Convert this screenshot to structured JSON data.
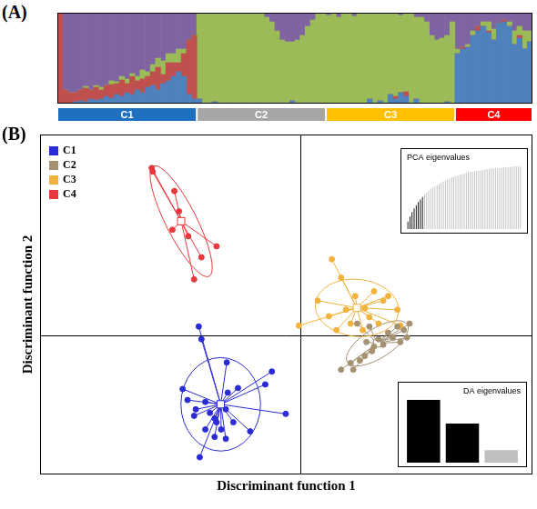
{
  "chart_data": [
    {
      "type": "bar",
      "title": "(A)",
      "stacked": true,
      "grid": false,
      "tick_labels": false,
      "categories": [
        null,
        null,
        null,
        null,
        null,
        null,
        null,
        null,
        null,
        null,
        null,
        null,
        null,
        null,
        null,
        null,
        null,
        null,
        null,
        null,
        null,
        null,
        null,
        null,
        null,
        null,
        null,
        null,
        null,
        null,
        null,
        null,
        null,
        null,
        null,
        null,
        null,
        null,
        null,
        null,
        null,
        null,
        null,
        null,
        null,
        null,
        null,
        null,
        null,
        null,
        null,
        null,
        null,
        null,
        null,
        null,
        null,
        null,
        null,
        null,
        null,
        null,
        null,
        null,
        null,
        null,
        null,
        null,
        null,
        null,
        null,
        null,
        null,
        null,
        null,
        null,
        null,
        null,
        null,
        null,
        null,
        null,
        null,
        null,
        null,
        null,
        null,
        null,
        null,
        null,
        null,
        null
      ],
      "series": [
        {
          "color": "#4f81bd",
          "values": [
            0,
            0,
            0,
            0.02,
            0.03,
            0.02,
            0.05,
            0.04,
            0.05,
            0.08,
            0.06,
            0.1,
            0.08,
            0.12,
            0.1,
            0.15,
            0.12,
            0.18,
            0.2,
            0.15,
            0.22,
            0.25,
            0.3,
            0.35,
            0.3,
            0.1,
            0.05,
            0.05,
            0,
            0,
            0.02,
            0,
            0,
            0,
            0,
            0,
            0,
            0,
            0,
            0,
            0,
            0,
            0,
            0,
            0,
            0.03,
            0,
            0,
            0,
            0,
            0,
            0,
            0,
            0,
            0,
            0,
            0,
            0,
            0,
            0,
            0.05,
            0,
            0.03,
            0,
            0.1,
            0.05,
            0.12,
            0.08,
            0,
            0.05,
            0,
            0,
            0,
            0,
            0,
            0.02,
            0,
            0.55,
            0.6,
            0.62,
            0.75,
            0.8,
            0.85,
            0.78,
            0.7,
            0.88,
            0.9,
            0.85,
            0.65,
            0.72,
            0.6,
            0.68
          ]
        },
        {
          "color": "#c0504d",
          "values": [
            1,
            0.15,
            0.12,
            0.1,
            0.12,
            0.15,
            0.1,
            0.14,
            0.1,
            0.12,
            0.15,
            0.12,
            0.18,
            0.1,
            0.2,
            0.1,
            0.15,
            0.12,
            0.15,
            0.25,
            0.1,
            0.2,
            0.15,
            0.1,
            0.25,
            0.6,
            0.7,
            0,
            0,
            0,
            0,
            0,
            0,
            0,
            0,
            0,
            0,
            0,
            0,
            0,
            0,
            0,
            0,
            0,
            0,
            0,
            0,
            0,
            0,
            0,
            0,
            0,
            0,
            0,
            0,
            0,
            0,
            0,
            0,
            0,
            0,
            0,
            0,
            0,
            0,
            0.03,
            0,
            0.05,
            0,
            0,
            0,
            0,
            0,
            0,
            0,
            0,
            0,
            0,
            0.02,
            0,
            0,
            0.05,
            0,
            0.02,
            0,
            0,
            0.02,
            0,
            0,
            0.03,
            0,
            0
          ]
        },
        {
          "color": "#9bbb59",
          "values": [
            0,
            0,
            0,
            0,
            0,
            0.02,
            0,
            0.02,
            0.03,
            0,
            0.04,
            0.02,
            0.04,
            0.05,
            0.03,
            0.05,
            0.1,
            0.05,
            0.08,
            0.1,
            0.15,
            0.1,
            0.1,
            0.15,
            0.05,
            0,
            0,
            0.95,
            1,
            1,
            0.98,
            1,
            1,
            1,
            1,
            1,
            1,
            1,
            1,
            1,
            0.95,
            0.9,
            0.8,
            0.7,
            0.68,
            0.65,
            0.7,
            0.75,
            0.85,
            0.92,
            1,
            1,
            0.97,
            1,
            0.95,
            1,
            1,
            0.96,
            1,
            1,
            0.95,
            1,
            0.97,
            1,
            0.9,
            0.92,
            0.85,
            0.87,
            1,
            0.9,
            0.95,
            0.9,
            0.75,
            0.7,
            0.72,
            0.73,
            0.9,
            0.05,
            0,
            0.03,
            0.05,
            0,
            0.05,
            0.1,
            0.12,
            0,
            0,
            0.05,
            0.15,
            0.1,
            0.2,
            0.12
          ]
        },
        {
          "color": "#8064a2",
          "values": [
            0,
            0.85,
            0.88,
            0.88,
            0.85,
            0.81,
            0.85,
            0.8,
            0.82,
            0.8,
            0.75,
            0.76,
            0.7,
            0.73,
            0.67,
            0.7,
            0.63,
            0.65,
            0.57,
            0.5,
            0.53,
            0.45,
            0.45,
            0.4,
            0.4,
            0.3,
            0.25,
            0,
            0,
            0,
            0,
            0,
            0,
            0,
            0,
            0,
            0,
            0,
            0,
            0,
            0.05,
            0.1,
            0.2,
            0.3,
            0.32,
            0.32,
            0.3,
            0.25,
            0.15,
            0.08,
            0,
            0,
            0.03,
            0,
            0.05,
            0,
            0,
            0.04,
            0,
            0,
            0,
            0,
            0,
            0,
            0,
            0,
            0.03,
            0,
            0,
            0.05,
            0.05,
            0.1,
            0.25,
            0.3,
            0.28,
            0.25,
            0.1,
            0.4,
            0.38,
            0.35,
            0.2,
            0.15,
            0.1,
            0.1,
            0.18,
            0.12,
            0.08,
            0.1,
            0.2,
            0.15,
            0.2,
            0.2
          ]
        }
      ],
      "ylim": [
        0,
        1
      ],
      "yticks": [],
      "groups": [
        {
          "label": "C1",
          "count": 27,
          "color": "#1f6fc0"
        },
        {
          "label": "C2",
          "count": 25,
          "color": "#a6a6a6"
        },
        {
          "label": "C3",
          "count": 25,
          "color": "#ffc000"
        },
        {
          "label": "C4",
          "count": 15,
          "color": "#ff0000"
        }
      ]
    },
    {
      "type": "scatter",
      "title": "(B)",
      "x_label": "Discriminant function 1",
      "y_label": "Discriminant function 2",
      "legend": "top-left",
      "grid": true,
      "tick_labels": false,
      "marker": "circle",
      "xlim": [
        -10.7,
        9.5
      ],
      "xticks": [
        0
      ],
      "ylim": [
        -5.8,
        8.4
      ],
      "yticks": [
        0
      ],
      "series": [
        {
          "name": "C1",
          "color": "#2b2bd6",
          "x": [
            -4.19,
            -4.08,
            -3.04,
            -1.19,
            -1.46,
            -2.58,
            -4.85,
            -4.65,
            -3.92,
            -4.31,
            -4.38,
            -3.73,
            -3.54,
            -3.08,
            -2.77,
            -3.27,
            -3.92,
            -3.54,
            -3.08,
            -0.62,
            -4.15,
            -2.08,
            -3.46,
            -3.0
          ],
          "y": [
            0.38,
            -0.15,
            -1.12,
            -1.5,
            -2.04,
            -2.19,
            -2.23,
            -2.69,
            -2.77,
            -3.08,
            -3.35,
            -3.23,
            -3.46,
            -3.08,
            -3.62,
            -3.92,
            -3.92,
            -4.23,
            -4.31,
            -3.27,
            -5.08,
            -4.0,
            -3.62,
            -2.38
          ]
        },
        {
          "name": "C2",
          "color": "#a39172",
          "x": [
            1.65,
            2.04,
            2.62,
            2.92,
            3.38,
            3.77,
            4.23,
            4.46,
            2.42,
            3.19,
            3.58,
            3.96,
            3.0,
            2.15,
            2.69,
            4.08,
            4.35,
            2.31,
            2.81
          ],
          "y": [
            -1.42,
            -1.15,
            -0.85,
            -0.65,
            -0.38,
            -0.08,
            0.23,
            0.5,
            -1.04,
            -0.15,
            0.12,
            0.38,
            -0.46,
            -1.42,
            -0.27,
            -0.27,
            -0.08,
            0.5,
            0.38
          ]
        },
        {
          "name": "C3",
          "color": "#f2b33d",
          "x": [
            1.27,
            1.65,
            0.69,
            -0.08,
            2.23,
            3.0,
            3.38,
            3.96,
            2.81,
            2.04,
            1.46,
            2.54,
            3.19,
            3.58,
            1.85,
            2.62,
            1.15,
            4.08
          ],
          "y": [
            3.19,
            2.42,
            1.46,
            0.42,
            1.65,
            1.85,
            1.46,
            1.08,
            0.77,
            0.5,
            0.23,
            0.23,
            0.5,
            1.65,
            1.08,
            1.15,
            0.81,
            0.42
          ]
        },
        {
          "name": "C4",
          "color": "#e8383d",
          "x": [
            -6.12,
            -6.08,
            -5.19,
            -5.0,
            -5.27,
            -4.62,
            -3.46,
            -4.08,
            -4.38
          ],
          "y": [
            7.0,
            6.85,
            6.04,
            5.19,
            4.42,
            4.15,
            3.73,
            3.27,
            2.35
          ]
        }
      ]
    },
    {
      "type": "bar",
      "title": "PCA eigenvalues",
      "grid": false,
      "tick_labels": false,
      "categories": [
        null,
        null,
        null,
        null,
        null,
        null,
        null,
        null,
        null,
        null,
        null,
        null,
        null,
        null,
        null,
        null,
        null,
        null,
        null,
        null,
        null,
        null,
        null,
        null,
        null,
        null,
        null,
        null,
        null,
        null,
        null,
        null,
        null,
        null,
        null,
        null,
        null,
        null,
        null,
        null,
        null,
        null,
        null,
        null,
        null,
        null,
        null,
        null,
        null,
        null,
        null,
        null,
        null,
        null,
        null
      ],
      "values": [
        0.12,
        0.2,
        0.27,
        0.33,
        0.38,
        0.43,
        0.47,
        0.51,
        0.55,
        0.58,
        0.61,
        0.64,
        0.66,
        0.68,
        0.7,
        0.72,
        0.74,
        0.76,
        0.77,
        0.79,
        0.8,
        0.82,
        0.83,
        0.84,
        0.85,
        0.86,
        0.87,
        0.88,
        0.89,
        0.9,
        0.905,
        0.91,
        0.92,
        0.925,
        0.93,
        0.935,
        0.94,
        0.945,
        0.95,
        0.955,
        0.96,
        0.963,
        0.966,
        0.97,
        0.973,
        0.976,
        0.979,
        0.982,
        0.985,
        0.988,
        0.99,
        0.993,
        0.995,
        0.998,
        1.0
      ],
      "colors": [
        "#000000",
        "#000000",
        "#000000",
        "#000000",
        "#000000",
        "#000000",
        "#000000",
        "#000000",
        "#bfbfbf",
        "#bfbfbf",
        "#bfbfbf",
        "#bfbfbf",
        "#bfbfbf",
        "#bfbfbf",
        "#bfbfbf",
        "#bfbfbf",
        "#bfbfbf",
        "#bfbfbf",
        "#bfbfbf",
        "#bfbfbf",
        "#bfbfbf",
        "#bfbfbf",
        "#bfbfbf",
        "#bfbfbf",
        "#bfbfbf",
        "#bfbfbf",
        "#bfbfbf",
        "#bfbfbf",
        "#bfbfbf",
        "#bfbfbf",
        "#bfbfbf",
        "#bfbfbf",
        "#bfbfbf",
        "#bfbfbf",
        "#bfbfbf",
        "#bfbfbf",
        "#bfbfbf",
        "#bfbfbf",
        "#bfbfbf",
        "#bfbfbf",
        "#bfbfbf",
        "#bfbfbf",
        "#bfbfbf",
        "#bfbfbf",
        "#bfbfbf",
        "#bfbfbf",
        "#bfbfbf",
        "#bfbfbf",
        "#bfbfbf",
        "#bfbfbf",
        "#bfbfbf",
        "#bfbfbf",
        "#bfbfbf",
        "#bfbfbf",
        "#bfbfbf"
      ],
      "ylim": [
        0,
        1
      ],
      "yticks": []
    },
    {
      "type": "bar",
      "title": "DA eigenvalues",
      "grid": false,
      "tick_labels": false,
      "categories": [
        null,
        null,
        null
      ],
      "values": [
        1.0,
        0.62,
        0.2
      ],
      "colors": [
        "#000000",
        "#000000",
        "#bfbfbf"
      ],
      "ylim": [
        0,
        1
      ],
      "yticks": []
    }
  ]
}
